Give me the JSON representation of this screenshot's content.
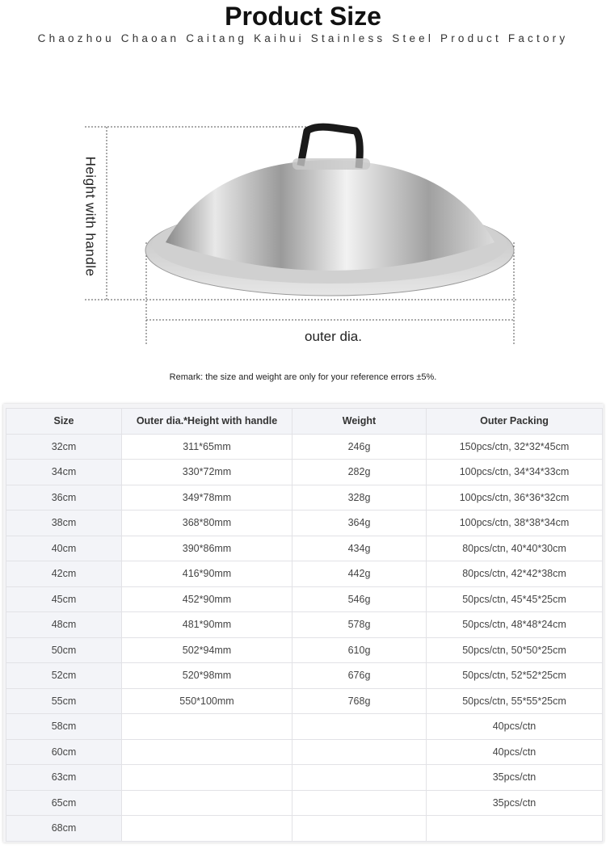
{
  "header": {
    "title": "Product Size",
    "subtitle": "Chaozhou Chaoan Caitang Kaihui Stainless Steel Product Factory"
  },
  "diagram": {
    "height_label": "Height with handle",
    "diameter_label": "outer dia."
  },
  "remark": "Remark: the size and weight are only for your reference errors ±5%.",
  "table": {
    "headers": [
      "Size",
      "Outer dia.*Height with handle",
      "Weight",
      "Outer Packing"
    ],
    "rows": [
      [
        "32cm",
        "311*65mm",
        "246g",
        "150pcs/ctn, 32*32*45cm"
      ],
      [
        "34cm",
        "330*72mm",
        "282g",
        "100pcs/ctn, 34*34*33cm"
      ],
      [
        "36cm",
        "349*78mm",
        "328g",
        "100pcs/ctn, 36*36*32cm"
      ],
      [
        "38cm",
        "368*80mm",
        "364g",
        "100pcs/ctn, 38*38*34cm"
      ],
      [
        "40cm",
        "390*86mm",
        "434g",
        "80pcs/ctn, 40*40*30cm"
      ],
      [
        "42cm",
        "416*90mm",
        "442g",
        "80pcs/ctn, 42*42*38cm"
      ],
      [
        "45cm",
        "452*90mm",
        "546g",
        "50pcs/ctn, 45*45*25cm"
      ],
      [
        "48cm",
        "481*90mm",
        "578g",
        "50pcs/ctn, 48*48*24cm"
      ],
      [
        "50cm",
        "502*94mm",
        "610g",
        "50pcs/ctn, 50*50*25cm"
      ],
      [
        "52cm",
        "520*98mm",
        "676g",
        "50pcs/ctn, 52*52*25cm"
      ],
      [
        "55cm",
        "550*100mm",
        "768g",
        "50pcs/ctn, 55*55*25cm"
      ],
      [
        "58cm",
        "",
        "",
        "40pcs/ctn"
      ],
      [
        "60cm",
        "",
        "",
        "40pcs/ctn"
      ],
      [
        "63cm",
        "",
        "",
        "35pcs/ctn"
      ],
      [
        "65cm",
        "",
        "",
        "35pcs/ctn"
      ],
      [
        "68cm",
        "",
        "",
        ""
      ]
    ]
  }
}
